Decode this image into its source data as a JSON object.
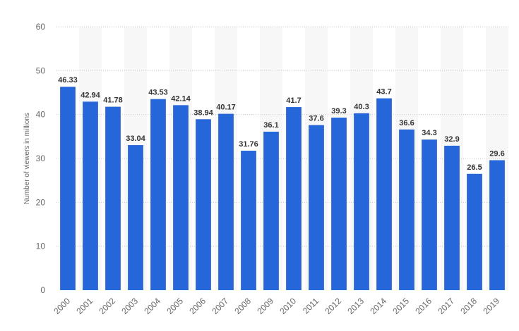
{
  "chart_data": {
    "type": "bar",
    "title": "",
    "xlabel": "",
    "ylabel": "Number of viewers in millions",
    "ylim": [
      0,
      60
    ],
    "yticks": [
      0,
      10,
      20,
      30,
      40,
      50,
      60
    ],
    "grid": true,
    "legend": "none",
    "bar_color": "#2566d9",
    "categories": [
      "2000",
      "2001",
      "2002",
      "2003",
      "2004",
      "2005",
      "2006",
      "2007",
      "2008",
      "2009",
      "2010",
      "2011",
      "2012",
      "2013",
      "2014",
      "2015",
      "2016",
      "2017",
      "2018",
      "2019"
    ],
    "values": [
      46.33,
      42.94,
      41.78,
      33.04,
      43.53,
      42.14,
      38.94,
      40.17,
      31.76,
      36.1,
      41.7,
      37.6,
      39.3,
      40.3,
      43.7,
      36.6,
      34.3,
      32.9,
      26.5,
      29.6
    ],
    "value_labels": [
      "46.33",
      "42.94",
      "41.78",
      "33.04",
      "43.53",
      "42.14",
      "38.94",
      "40.17",
      "31.76",
      "36.1",
      "41.7",
      "37.6",
      "39.3",
      "40.3",
      "43.7",
      "36.6",
      "34.3",
      "32.9",
      "26.5",
      "29.6"
    ]
  }
}
